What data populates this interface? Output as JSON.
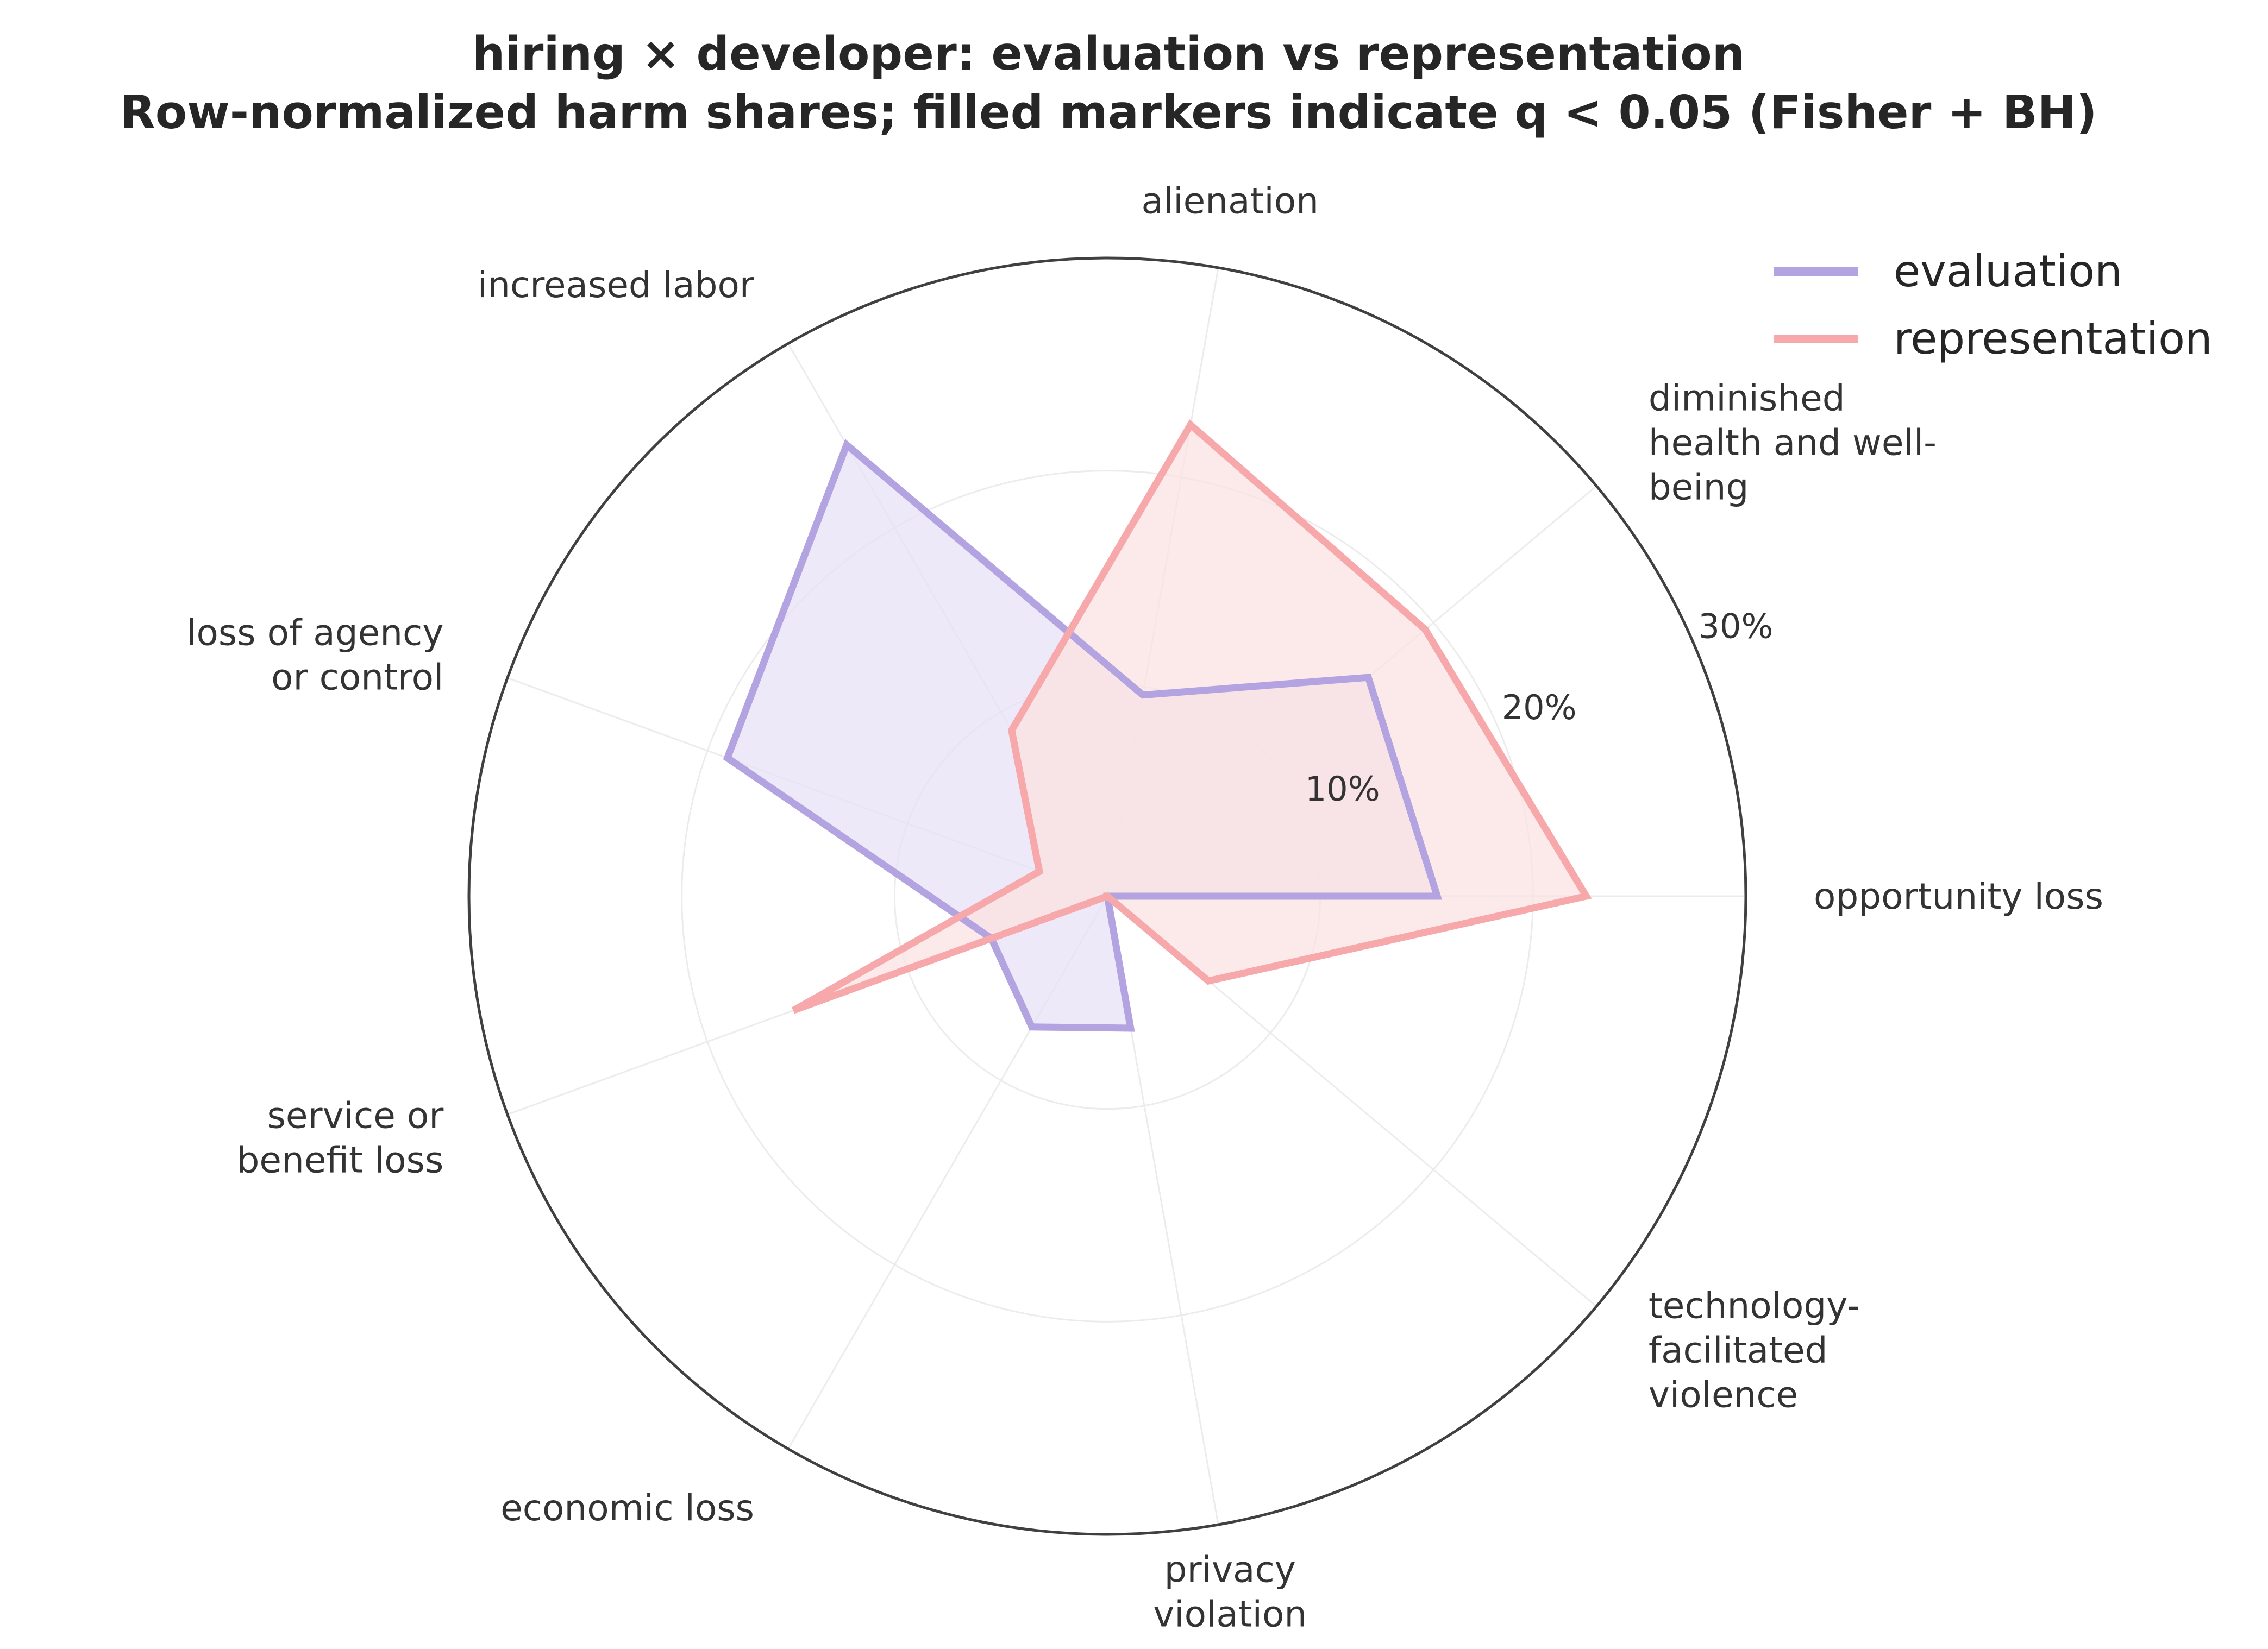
{
  "chart_data": {
    "type": "radar",
    "title": "hiring × developer: evaluation vs representation",
    "subtitle": "Row-normalized harm shares; filled markers indicate q < 0.05 (Fisher + BH)",
    "categories": [
      "opportunity loss",
      "diminished health and well-being",
      "alienation",
      "increased labor",
      "loss of agency or control",
      "service or benefit loss",
      "economic loss",
      "privacy violation",
      "technology-facilitated violence"
    ],
    "category_label_lines": [
      [
        "opportunity loss"
      ],
      [
        "diminished",
        "health and well-",
        "being"
      ],
      [
        "alienation"
      ],
      [
        "increased labor"
      ],
      [
        "loss of agency",
        "or control"
      ],
      [
        "service or",
        "benefit loss"
      ],
      [
        "economic loss"
      ],
      [
        "privacy",
        "violation"
      ],
      [
        "technology-",
        "facilitated",
        "violence"
      ]
    ],
    "radial_ticks": [
      10,
      20,
      30
    ],
    "radial_tick_labels": [
      "10%",
      "20%",
      "30%"
    ],
    "rlim": [
      0,
      30
    ],
    "grid": true,
    "legend_position": "top-right",
    "series": [
      {
        "name": "evaluation",
        "color": "#b3a3e0",
        "fill": "#e8e2f6",
        "values": [
          15.5,
          16.0,
          9.6,
          24.5,
          19.0,
          5.8,
          7.1,
          6.3,
          0.0
        ]
      },
      {
        "name": "representation",
        "color": "#f7a8aa",
        "fill": "#fbe1e1",
        "values": [
          22.5,
          19.5,
          22.5,
          9.0,
          3.4,
          15.7,
          0.0,
          0.0,
          6.2
        ]
      }
    ]
  }
}
